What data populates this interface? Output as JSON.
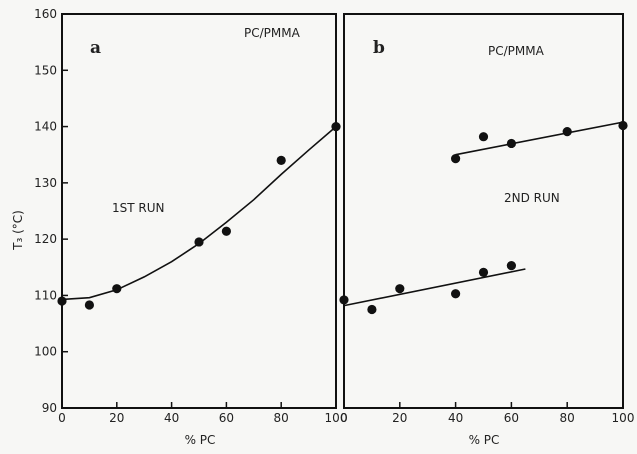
{
  "figure": {
    "ylabel": "T₃ (°C)"
  },
  "chart_data": [
    {
      "type": "scatter",
      "panel_letter": "a",
      "subtitle": "PC/PMMA",
      "annotation": "1ST RUN",
      "xlabel": "% PC",
      "ylabel": "T₃ (°C)",
      "xlim": [
        0,
        100
      ],
      "ylim": [
        90,
        160
      ],
      "xticks": [
        "0",
        "20",
        "40",
        "60",
        "80",
        "100"
      ],
      "yticks": [
        "90",
        "100",
        "110",
        "120",
        "130",
        "140",
        "150",
        "160"
      ],
      "grid": false,
      "points": [
        {
          "x": 0,
          "y": 109
        },
        {
          "x": 10,
          "y": 108.3
        },
        {
          "x": 20,
          "y": 111.2
        },
        {
          "x": 50,
          "y": 119.5
        },
        {
          "x": 60,
          "y": 121.4
        },
        {
          "x": 80,
          "y": 134
        },
        {
          "x": 100,
          "y": 140
        }
      ],
      "fit_curves": [
        [
          [
            0,
            109.3
          ],
          [
            10,
            109.6
          ],
          [
            20,
            111
          ],
          [
            30,
            113.3
          ],
          [
            40,
            116
          ],
          [
            50,
            119.2
          ],
          [
            60,
            123
          ],
          [
            70,
            127
          ],
          [
            80,
            131.5
          ],
          [
            90,
            135.8
          ],
          [
            100,
            140
          ]
        ]
      ]
    },
    {
      "type": "scatter",
      "panel_letter": "b",
      "subtitle": "PC/PMMA",
      "annotation": "2ND RUN",
      "xlabel": "% PC",
      "ylabel": "",
      "xlim": [
        0,
        100
      ],
      "ylim": [
        90,
        160
      ],
      "xticks": [
        "0",
        "20",
        "40",
        "60",
        "80",
        "100"
      ],
      "yticks": [],
      "grid": false,
      "points": [
        {
          "x": 0,
          "y": 109.2
        },
        {
          "x": 10,
          "y": 107.5
        },
        {
          "x": 20,
          "y": 111.2
        },
        {
          "x": 40,
          "y": 110.3
        },
        {
          "x": 50,
          "y": 114.1
        },
        {
          "x": 60,
          "y": 115.3
        },
        {
          "x": 40,
          "y": 134.3
        },
        {
          "x": 50,
          "y": 138.2
        },
        {
          "x": 60,
          "y": 137
        },
        {
          "x": 80,
          "y": 139.1
        },
        {
          "x": 100,
          "y": 140.2
        }
      ],
      "fit_curves": [
        [
          [
            0,
            108.2
          ],
          [
            65,
            114.7
          ]
        ],
        [
          [
            40,
            135
          ],
          [
            100,
            140.8
          ]
        ]
      ]
    }
  ]
}
